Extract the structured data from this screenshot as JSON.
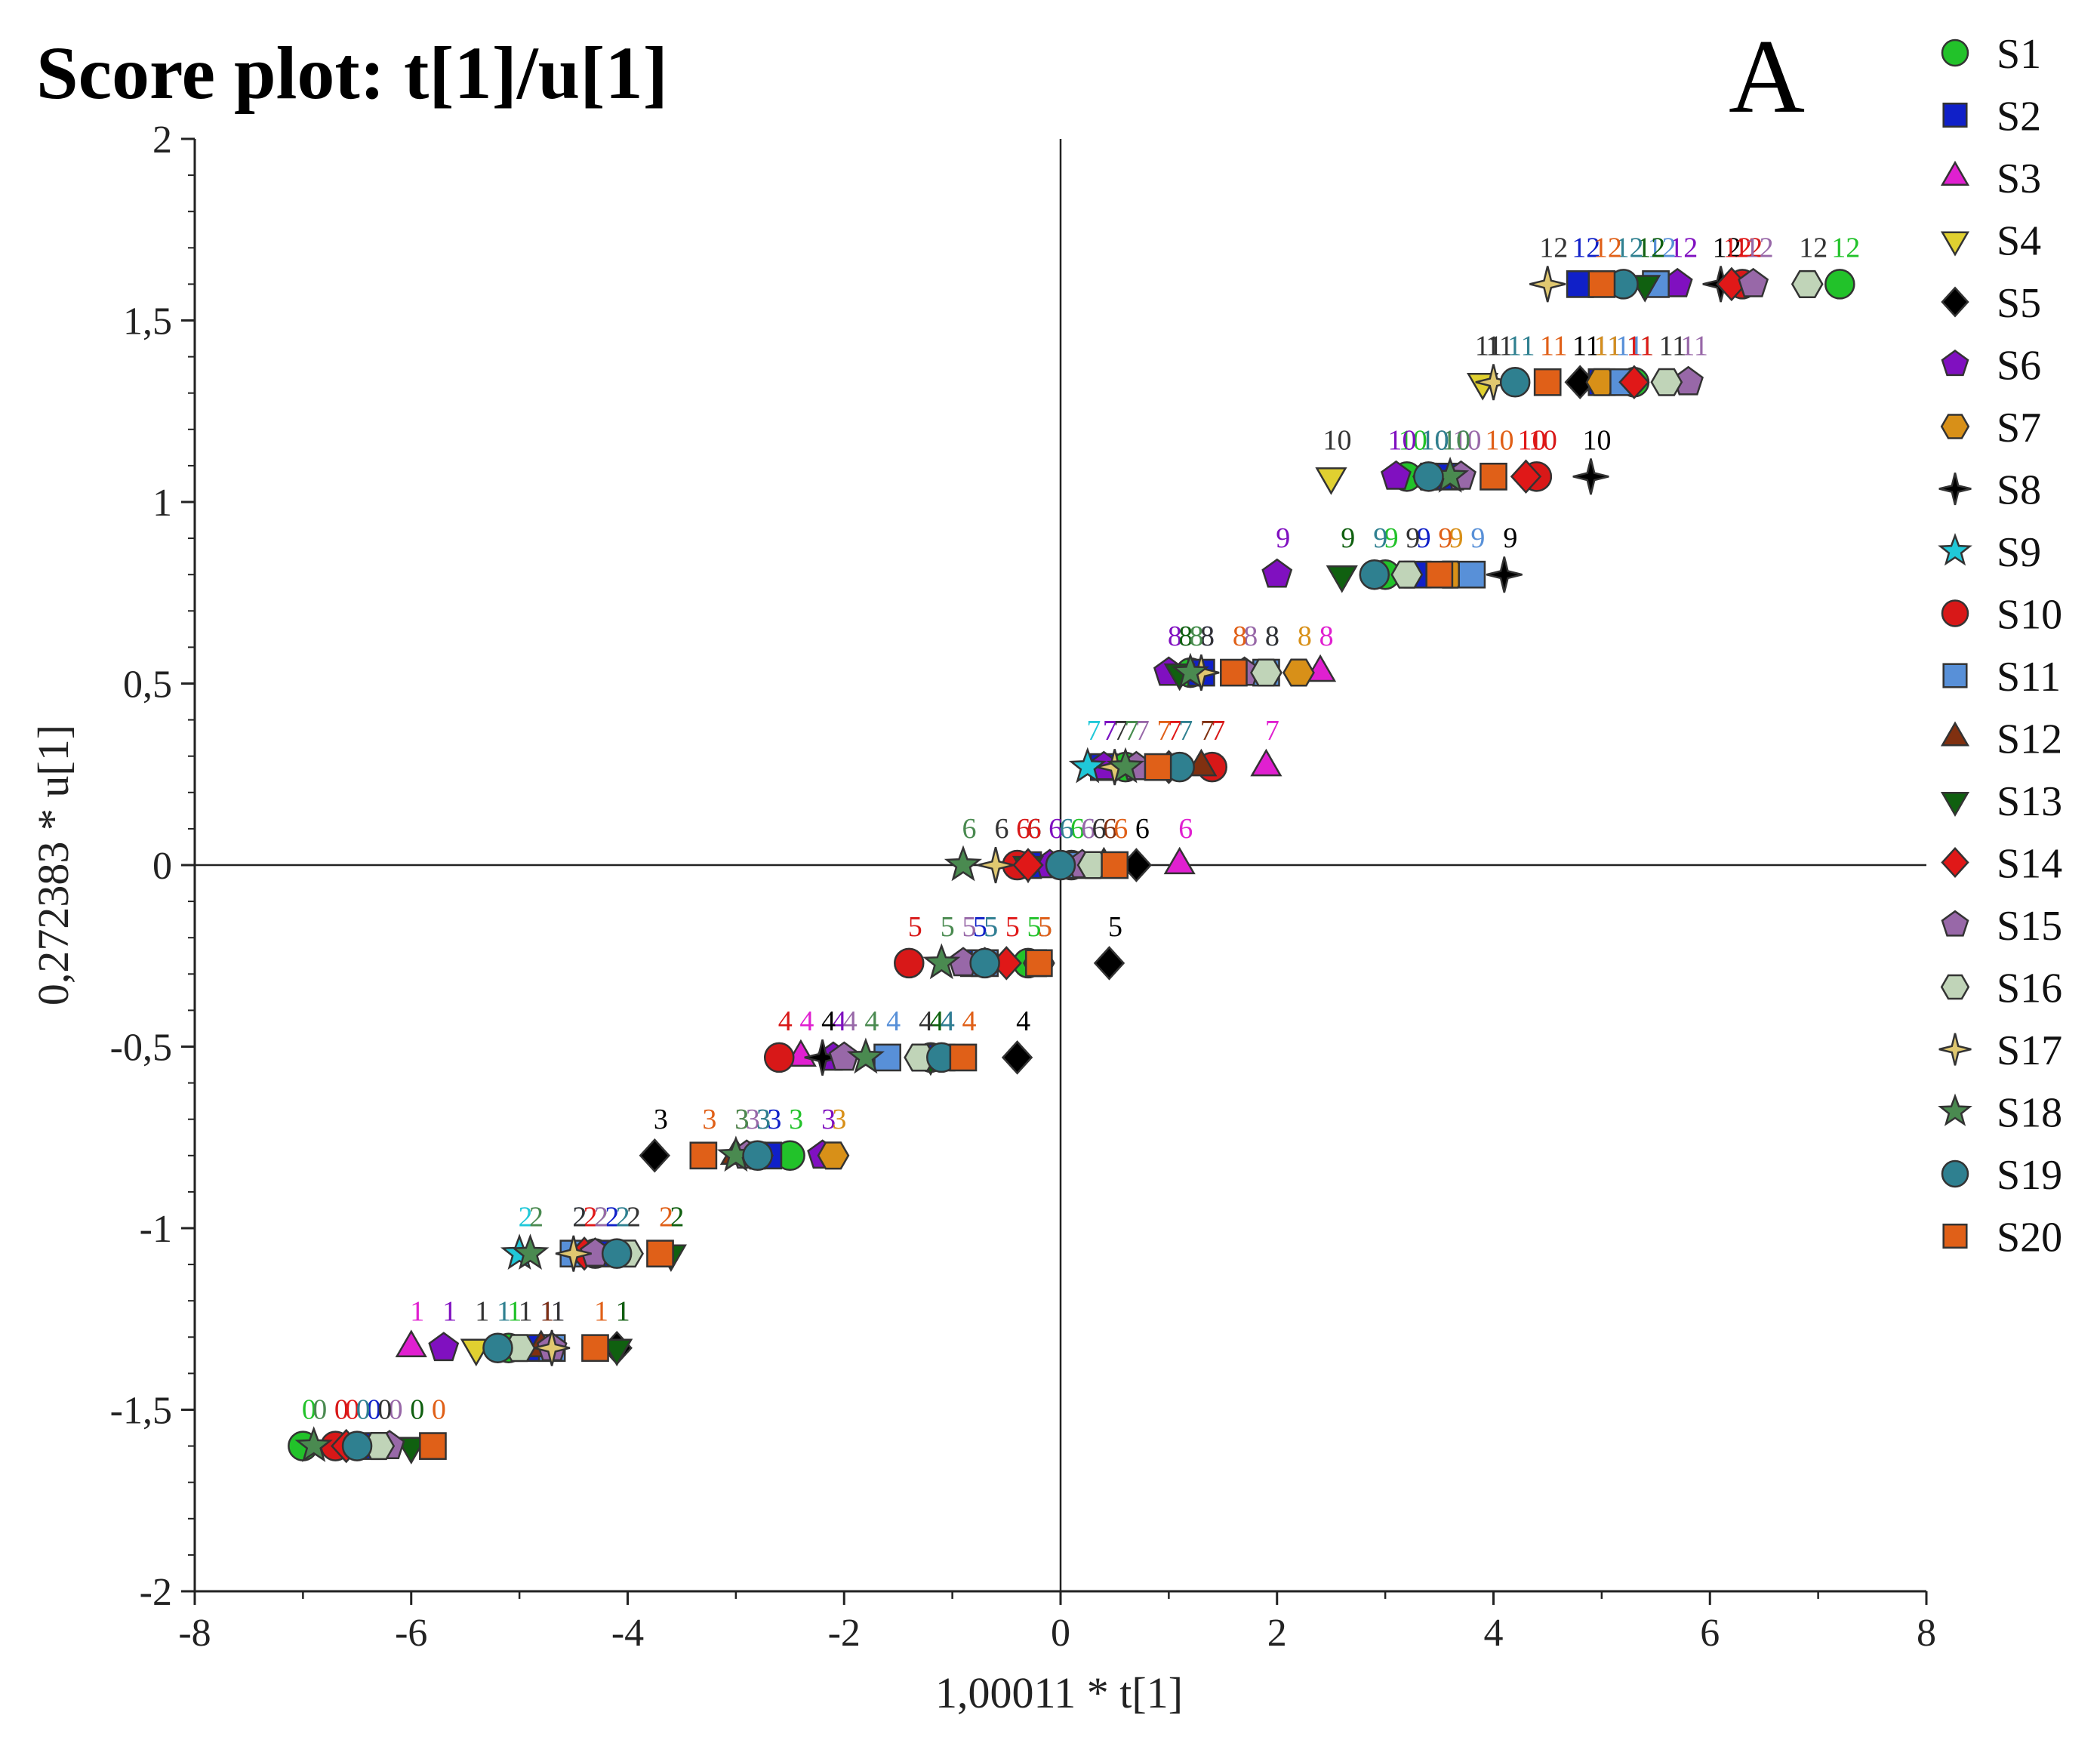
{
  "chart_data": {
    "type": "scatter",
    "title": "Score plot: t[1]/u[1]",
    "panel_letter": "A",
    "xlabel": "1,00011 * t[1]",
    "ylabel": "0,272383 * u[1]",
    "xlim": [
      -8,
      8
    ],
    "ylim": [
      -2,
      2
    ],
    "x_ticks": [
      -8,
      -6,
      -4,
      -2,
      0,
      2,
      4,
      6,
      8
    ],
    "x_tick_labels": [
      "-8",
      "-6",
      "-4",
      "-2",
      "0",
      "2",
      "4",
      "6",
      "8"
    ],
    "y_ticks": [
      -2,
      -1.5,
      -1,
      -0.5,
      0,
      0.5,
      1,
      1.5,
      2
    ],
    "y_tick_labels": [
      "-2",
      "-1,5",
      "-1",
      "-0,5",
      "0",
      "0,5",
      "1",
      "1,5",
      "2"
    ],
    "legend_position": "right",
    "series": [
      {
        "name": "S1",
        "marker": "circle",
        "color": "#22c22a",
        "points": [
          [
            -7.0,
            -1.6,
            "0"
          ],
          [
            -5.1,
            -1.33,
            "1"
          ],
          [
            -4.3,
            -1.07,
            "2"
          ],
          [
            -2.5,
            -0.8,
            "3"
          ],
          [
            -1.2,
            -0.53,
            "4"
          ],
          [
            -0.3,
            -0.27,
            "5"
          ],
          [
            0.1,
            0,
            "6"
          ],
          [
            0.6,
            0.27,
            "7"
          ],
          [
            1.2,
            0.53,
            "8"
          ],
          [
            3.0,
            0.8,
            "9"
          ],
          [
            3.2,
            1.07,
            "10"
          ],
          [
            5.3,
            1.33,
            "11"
          ],
          [
            7.2,
            1.6,
            "12"
          ]
        ]
      },
      {
        "name": "S2",
        "marker": "square",
        "color": "#1020c8",
        "points": [
          [
            -6.4,
            -1.6,
            "0"
          ],
          [
            -4.8,
            -1.33,
            "1"
          ],
          [
            -4.2,
            -1.07,
            "2"
          ],
          [
            -2.7,
            -0.8,
            "3"
          ],
          [
            -1.1,
            -0.53,
            "4"
          ],
          [
            -0.8,
            -0.27,
            "5"
          ],
          [
            -0.3,
            0,
            "6"
          ],
          [
            0.4,
            0.27,
            "7"
          ],
          [
            1.3,
            0.53,
            "8"
          ],
          [
            3.3,
            0.8,
            "9"
          ],
          [
            3.6,
            1.07,
            "10"
          ],
          [
            5.0,
            1.33,
            "11"
          ],
          [
            4.8,
            1.6,
            "12"
          ]
        ]
      },
      {
        "name": "S3",
        "marker": "triangle-up",
        "color": "#e020d0",
        "points": [
          [
            -6.0,
            -1.33,
            "1"
          ],
          [
            -2.4,
            -0.53,
            "4"
          ],
          [
            1.1,
            0,
            "6"
          ],
          [
            1.9,
            0.27,
            "7"
          ],
          [
            2.4,
            0.53,
            "8"
          ]
        ]
      },
      {
        "name": "S4",
        "marker": "triangle-down",
        "color": "#e0d030",
        "points": [
          [
            -5.4,
            -1.33,
            "1"
          ],
          [
            2.5,
            1.07,
            "10"
          ],
          [
            3.9,
            1.33,
            "11"
          ]
        ]
      },
      {
        "name": "S5",
        "marker": "diamond",
        "color": "#000000",
        "points": [
          [
            -4.1,
            -1.33,
            "1"
          ],
          [
            -3.75,
            -0.8,
            "3"
          ],
          [
            -0.4,
            -0.53,
            "4"
          ],
          [
            0.45,
            -0.27,
            "5"
          ],
          [
            0.7,
            0,
            "6"
          ],
          [
            4.8,
            1.33,
            "11"
          ]
        ]
      },
      {
        "name": "S6",
        "marker": "pentagon",
        "color": "#8010c0",
        "points": [
          [
            -5.7,
            -1.33,
            "1"
          ],
          [
            -2.2,
            -0.8,
            "3"
          ],
          [
            -2.1,
            -0.53,
            "4"
          ],
          [
            -0.7,
            -0.27,
            "5"
          ],
          [
            -0.1,
            0,
            "6"
          ],
          [
            0.4,
            0.27,
            "7"
          ],
          [
            1.0,
            0.53,
            "8"
          ],
          [
            2.0,
            0.8,
            "9"
          ],
          [
            3.1,
            1.07,
            "10"
          ],
          [
            5.7,
            1.6,
            "12"
          ]
        ]
      },
      {
        "name": "S7",
        "marker": "hexagon",
        "color": "#d89018",
        "points": [
          [
            -2.1,
            -0.8,
            "3"
          ],
          [
            2.2,
            0.53,
            "8"
          ],
          [
            3.6,
            0.8,
            "9"
          ],
          [
            5.0,
            1.33,
            "11"
          ]
        ]
      },
      {
        "name": "S8",
        "marker": "star4",
        "color": "#000000",
        "points": [
          [
            -2.2,
            -0.53,
            "4"
          ],
          [
            4.9,
            1.07,
            "10"
          ],
          [
            4.1,
            0.8,
            "9"
          ],
          [
            6.1,
            1.6,
            "12"
          ]
        ]
      },
      {
        "name": "S9",
        "marker": "star5",
        "color": "#20c8d8",
        "points": [
          [
            -5.0,
            -1.07,
            "2"
          ],
          [
            0.25,
            0.27,
            "7"
          ]
        ]
      },
      {
        "name": "S10",
        "marker": "circle",
        "color": "#d81818",
        "points": [
          [
            -6.7,
            -1.6,
            "0"
          ],
          [
            -2.6,
            -0.53,
            "4"
          ],
          [
            -1.4,
            -0.27,
            "5"
          ],
          [
            -0.4,
            0,
            "6"
          ],
          [
            1.4,
            0.27,
            "7"
          ],
          [
            4.4,
            1.07,
            "10"
          ],
          [
            6.3,
            1.6,
            "12"
          ]
        ]
      },
      {
        "name": "S11",
        "marker": "square",
        "color": "#5890d8",
        "points": [
          [
            -4.7,
            -1.33,
            "1"
          ],
          [
            -4.5,
            -1.07,
            "2"
          ],
          [
            -1.6,
            -0.53,
            "4"
          ],
          [
            -0.7,
            -0.27,
            "5"
          ],
          [
            0.2,
            0,
            "6"
          ],
          [
            1.9,
            0.53,
            "8"
          ],
          [
            3.8,
            0.8,
            "9"
          ],
          [
            5.2,
            1.33,
            "11"
          ],
          [
            5.5,
            1.6,
            "12"
          ]
        ]
      },
      {
        "name": "S12",
        "marker": "triangle-up",
        "color": "#803010",
        "points": [
          [
            -4.8,
            -1.33,
            "1"
          ],
          [
            -3.0,
            -0.8,
            "3"
          ],
          [
            0.4,
            0,
            "6"
          ],
          [
            1.3,
            0.27,
            "7"
          ]
        ]
      },
      {
        "name": "S13",
        "marker": "triangle-down",
        "color": "#106010",
        "points": [
          [
            -6.0,
            -1.6,
            "0"
          ],
          [
            -4.1,
            -1.33,
            "1"
          ],
          [
            -3.6,
            -1.07,
            "2"
          ],
          [
            -1.2,
            -0.53,
            "4"
          ],
          [
            -0.3,
            0,
            "6"
          ],
          [
            1.1,
            0.53,
            "8"
          ],
          [
            2.6,
            0.8,
            "9"
          ],
          [
            5.4,
            1.6,
            "12"
          ]
        ]
      },
      {
        "name": "S14",
        "marker": "diamond",
        "color": "#e01818",
        "points": [
          [
            -6.6,
            -1.6,
            "0"
          ],
          [
            -4.4,
            -1.07,
            "2"
          ],
          [
            -0.5,
            -0.27,
            "5"
          ],
          [
            -0.3,
            0,
            "6"
          ],
          [
            1.0,
            0.27,
            "7"
          ],
          [
            4.3,
            1.07,
            "10"
          ],
          [
            5.3,
            1.33,
            "11"
          ],
          [
            6.2,
            1.6,
            "12"
          ]
        ]
      },
      {
        "name": "S15",
        "marker": "pentagon",
        "color": "#9868a8",
        "points": [
          [
            -6.2,
            -1.6,
            "0"
          ],
          [
            -4.7,
            -1.33,
            "1"
          ],
          [
            -4.3,
            -1.07,
            "2"
          ],
          [
            -2.9,
            -0.8,
            "3"
          ],
          [
            -2.0,
            -0.53,
            "4"
          ],
          [
            -0.9,
            -0.27,
            "5"
          ],
          [
            0.2,
            0,
            "6"
          ],
          [
            0.7,
            0.27,
            "7"
          ],
          [
            1.7,
            0.53,
            "8"
          ],
          [
            3.7,
            1.07,
            "10"
          ],
          [
            5.8,
            1.33,
            "11"
          ],
          [
            6.4,
            1.6,
            "12"
          ]
        ]
      },
      {
        "name": "S16",
        "marker": "hexagon",
        "color": "#c0d4b8",
        "points": [
          [
            -6.3,
            -1.6,
            "0"
          ],
          [
            -5.0,
            -1.33,
            "1"
          ],
          [
            -4.0,
            -1.07,
            "2"
          ],
          [
            -2.8,
            -0.8,
            "3"
          ],
          [
            -1.3,
            -0.53,
            "4"
          ],
          [
            -0.2,
            -0.27,
            "5"
          ],
          [
            0.3,
            0,
            "6"
          ],
          [
            1.9,
            0.53,
            "8"
          ],
          [
            3.2,
            0.8,
            "9"
          ],
          [
            3.4,
            1.07,
            "10"
          ],
          [
            5.6,
            1.33,
            "11"
          ],
          [
            6.9,
            1.6,
            "12"
          ]
        ]
      },
      {
        "name": "S17",
        "marker": "star4",
        "color": "#e0c870",
        "points": [
          [
            -4.5,
            -1.07,
            "2"
          ],
          [
            -4.7,
            -1.33,
            "1"
          ],
          [
            -0.6,
            0,
            "6"
          ],
          [
            0.5,
            0.27,
            "7"
          ],
          [
            1.3,
            0.53,
            "8"
          ],
          [
            4.0,
            1.33,
            "11"
          ],
          [
            4.5,
            1.6,
            "12"
          ]
        ]
      },
      {
        "name": "S18",
        "marker": "star5",
        "color": "#4a8a50",
        "points": [
          [
            -6.9,
            -1.6,
            "0"
          ],
          [
            -4.9,
            -1.07,
            "2"
          ],
          [
            -3.0,
            -0.8,
            "3"
          ],
          [
            -1.8,
            -0.53,
            "4"
          ],
          [
            -1.1,
            -0.27,
            "5"
          ],
          [
            -0.9,
            0,
            "6"
          ],
          [
            0.6,
            0.27,
            "7"
          ],
          [
            1.2,
            0.53,
            "8"
          ],
          [
            3.6,
            1.07,
            "10"
          ]
        ]
      },
      {
        "name": "S19",
        "marker": "circle",
        "color": "#2f8090",
        "points": [
          [
            -6.5,
            -1.6,
            "0"
          ],
          [
            -5.2,
            -1.33,
            "1"
          ],
          [
            -4.1,
            -1.07,
            "2"
          ],
          [
            -2.8,
            -0.8,
            "3"
          ],
          [
            -1.1,
            -0.53,
            "4"
          ],
          [
            -0.7,
            -0.27,
            "5"
          ],
          [
            0,
            0,
            "6"
          ],
          [
            1.1,
            0.27,
            "7"
          ],
          [
            2.9,
            0.8,
            "9"
          ],
          [
            3.4,
            1.07,
            "10"
          ],
          [
            4.2,
            1.33,
            "11"
          ],
          [
            5.2,
            1.6,
            "12"
          ]
        ]
      },
      {
        "name": "S20",
        "marker": "square",
        "color": "#e06018",
        "points": [
          [
            -5.8,
            -1.6,
            "0"
          ],
          [
            -4.3,
            -1.33,
            "1"
          ],
          [
            -3.7,
            -1.07,
            "2"
          ],
          [
            -3.3,
            -0.8,
            "3"
          ],
          [
            -0.9,
            -0.53,
            "4"
          ],
          [
            -0.2,
            -0.27,
            "5"
          ],
          [
            0.5,
            0,
            "6"
          ],
          [
            0.9,
            0.27,
            "7"
          ],
          [
            1.6,
            0.53,
            "8"
          ],
          [
            3.5,
            0.8,
            "9"
          ],
          [
            4.0,
            1.07,
            "10"
          ],
          [
            4.5,
            1.33,
            "11"
          ],
          [
            5.0,
            1.6,
            "12"
          ]
        ]
      }
    ]
  }
}
